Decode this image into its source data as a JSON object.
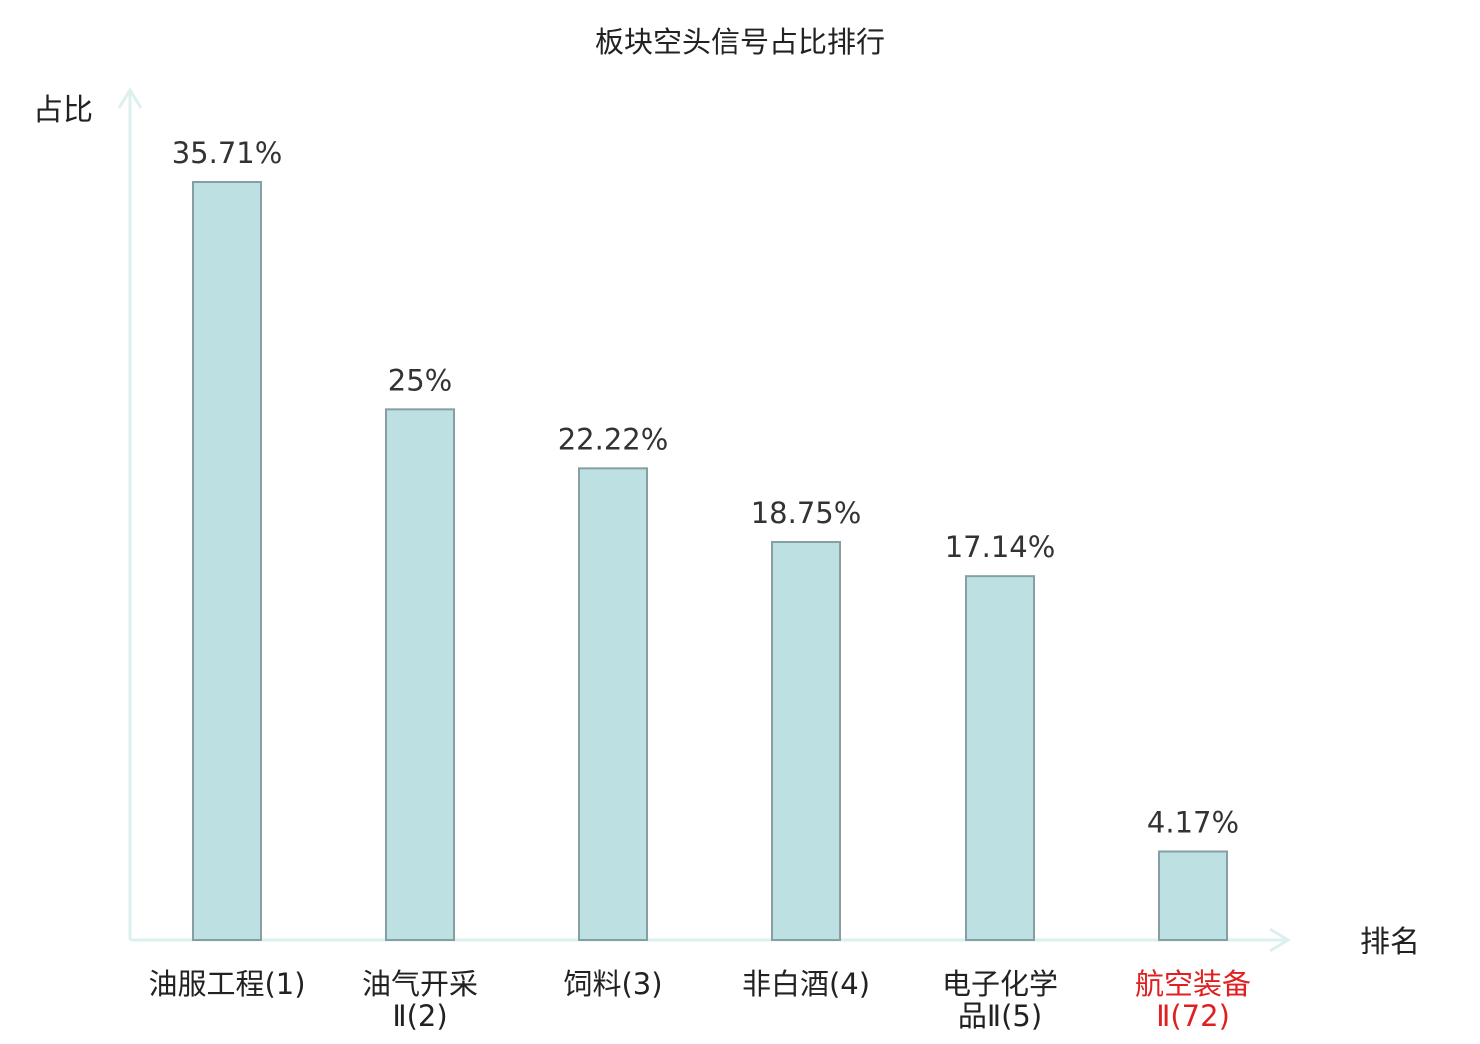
{
  "chart_data": {
    "type": "bar",
    "title": "板块空头信号占比排行",
    "ylabel": "占比",
    "xlabel": "排名",
    "categories": [
      {
        "name": "油服工程",
        "rank": "(1)"
      },
      {
        "name": "油气开采Ⅱ",
        "rank": "(2)"
      },
      {
        "name": "饲料",
        "rank": "(3)"
      },
      {
        "name": "非白酒",
        "rank": "(4)"
      },
      {
        "name": "电子化学品Ⅱ",
        "rank": "(5)"
      },
      {
        "name": "航空装备Ⅱ",
        "rank": "(72)",
        "highlight": true
      }
    ],
    "values": [
      35.71,
      25,
      22.22,
      18.75,
      17.14,
      4.17
    ],
    "value_labels": [
      "35.71%",
      "25%",
      "22.22%",
      "18.75%",
      "17.14%",
      "4.17%"
    ],
    "ylim": [
      0,
      36
    ],
    "grid": false,
    "legend": "none",
    "colors": {
      "bar_fill": "#bde0e3",
      "bar_stroke": "#869fa2",
      "axis": "#dcf1ef",
      "text": "#333333",
      "highlight": "#e02020"
    }
  }
}
